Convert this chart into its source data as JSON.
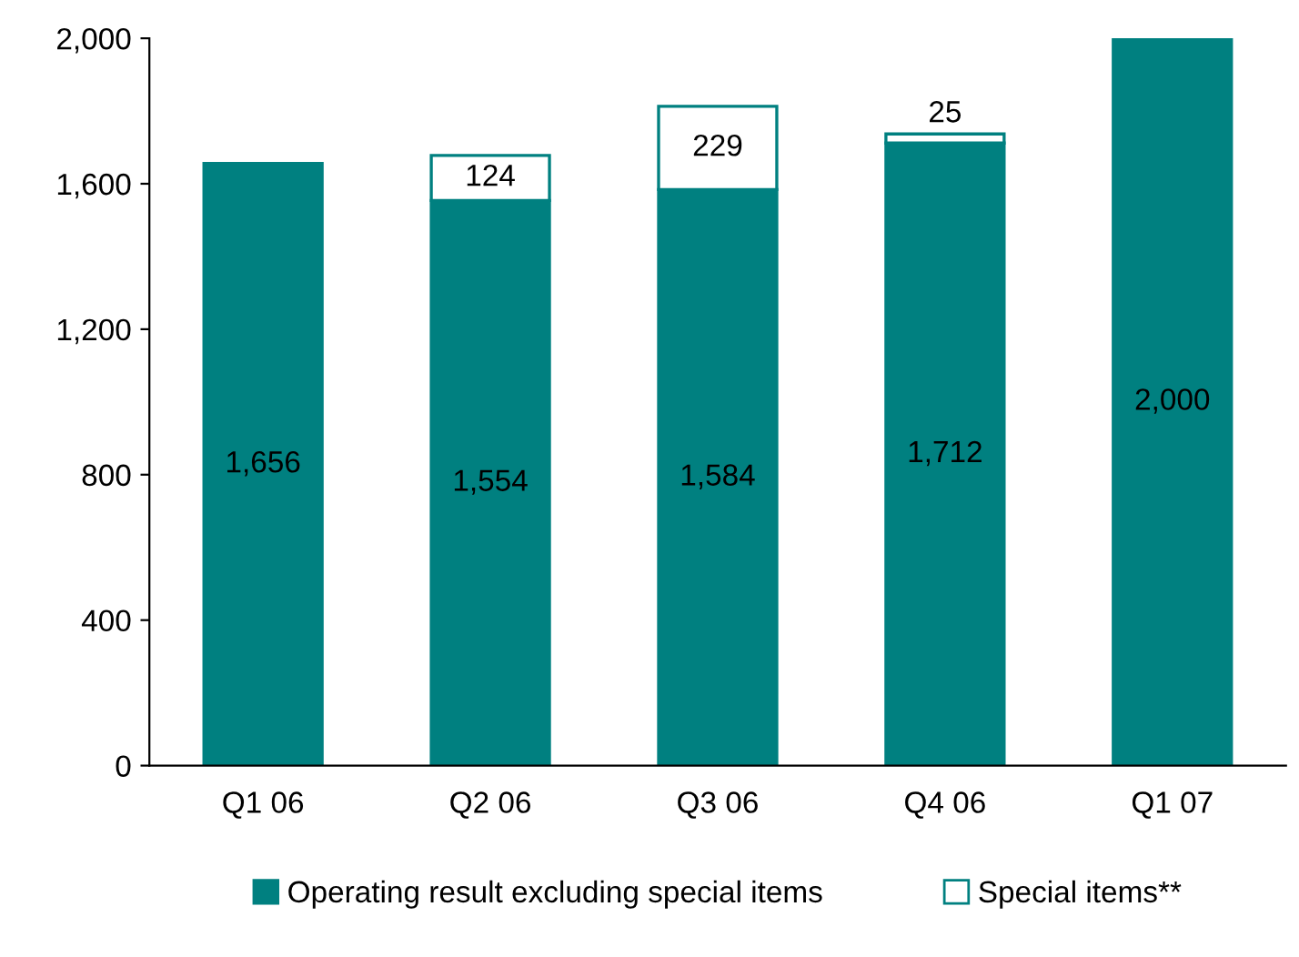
{
  "chart_data": {
    "type": "bar",
    "stacked": true,
    "categories": [
      "Q1 06",
      "Q2 06",
      "Q3 06",
      "Q4 06",
      "Q1 07"
    ],
    "series": [
      {
        "name": "Operating result excluding special items",
        "color": "#008080",
        "values": [
          1656,
          1554,
          1584,
          1712,
          2000
        ],
        "value_labels": [
          "1,656",
          "1,554",
          "1,584",
          "1,712",
          "2,000"
        ]
      },
      {
        "name": "Special items**",
        "color": "#ffffff",
        "values": [
          null,
          124,
          229,
          25,
          null
        ],
        "value_labels": [
          null,
          "124",
          "229",
          "25",
          null
        ]
      }
    ],
    "ylim": [
      0,
      2000
    ],
    "yticks": [
      {
        "value": 0,
        "label": "0"
      },
      {
        "value": 400,
        "label": "400"
      },
      {
        "value": 800,
        "label": "800"
      },
      {
        "value": 1200,
        "label": "1,200"
      },
      {
        "value": 1600,
        "label": "1,600"
      },
      {
        "value": 2000,
        "label": "2,000"
      }
    ],
    "grid": false,
    "legend": "bottom"
  }
}
